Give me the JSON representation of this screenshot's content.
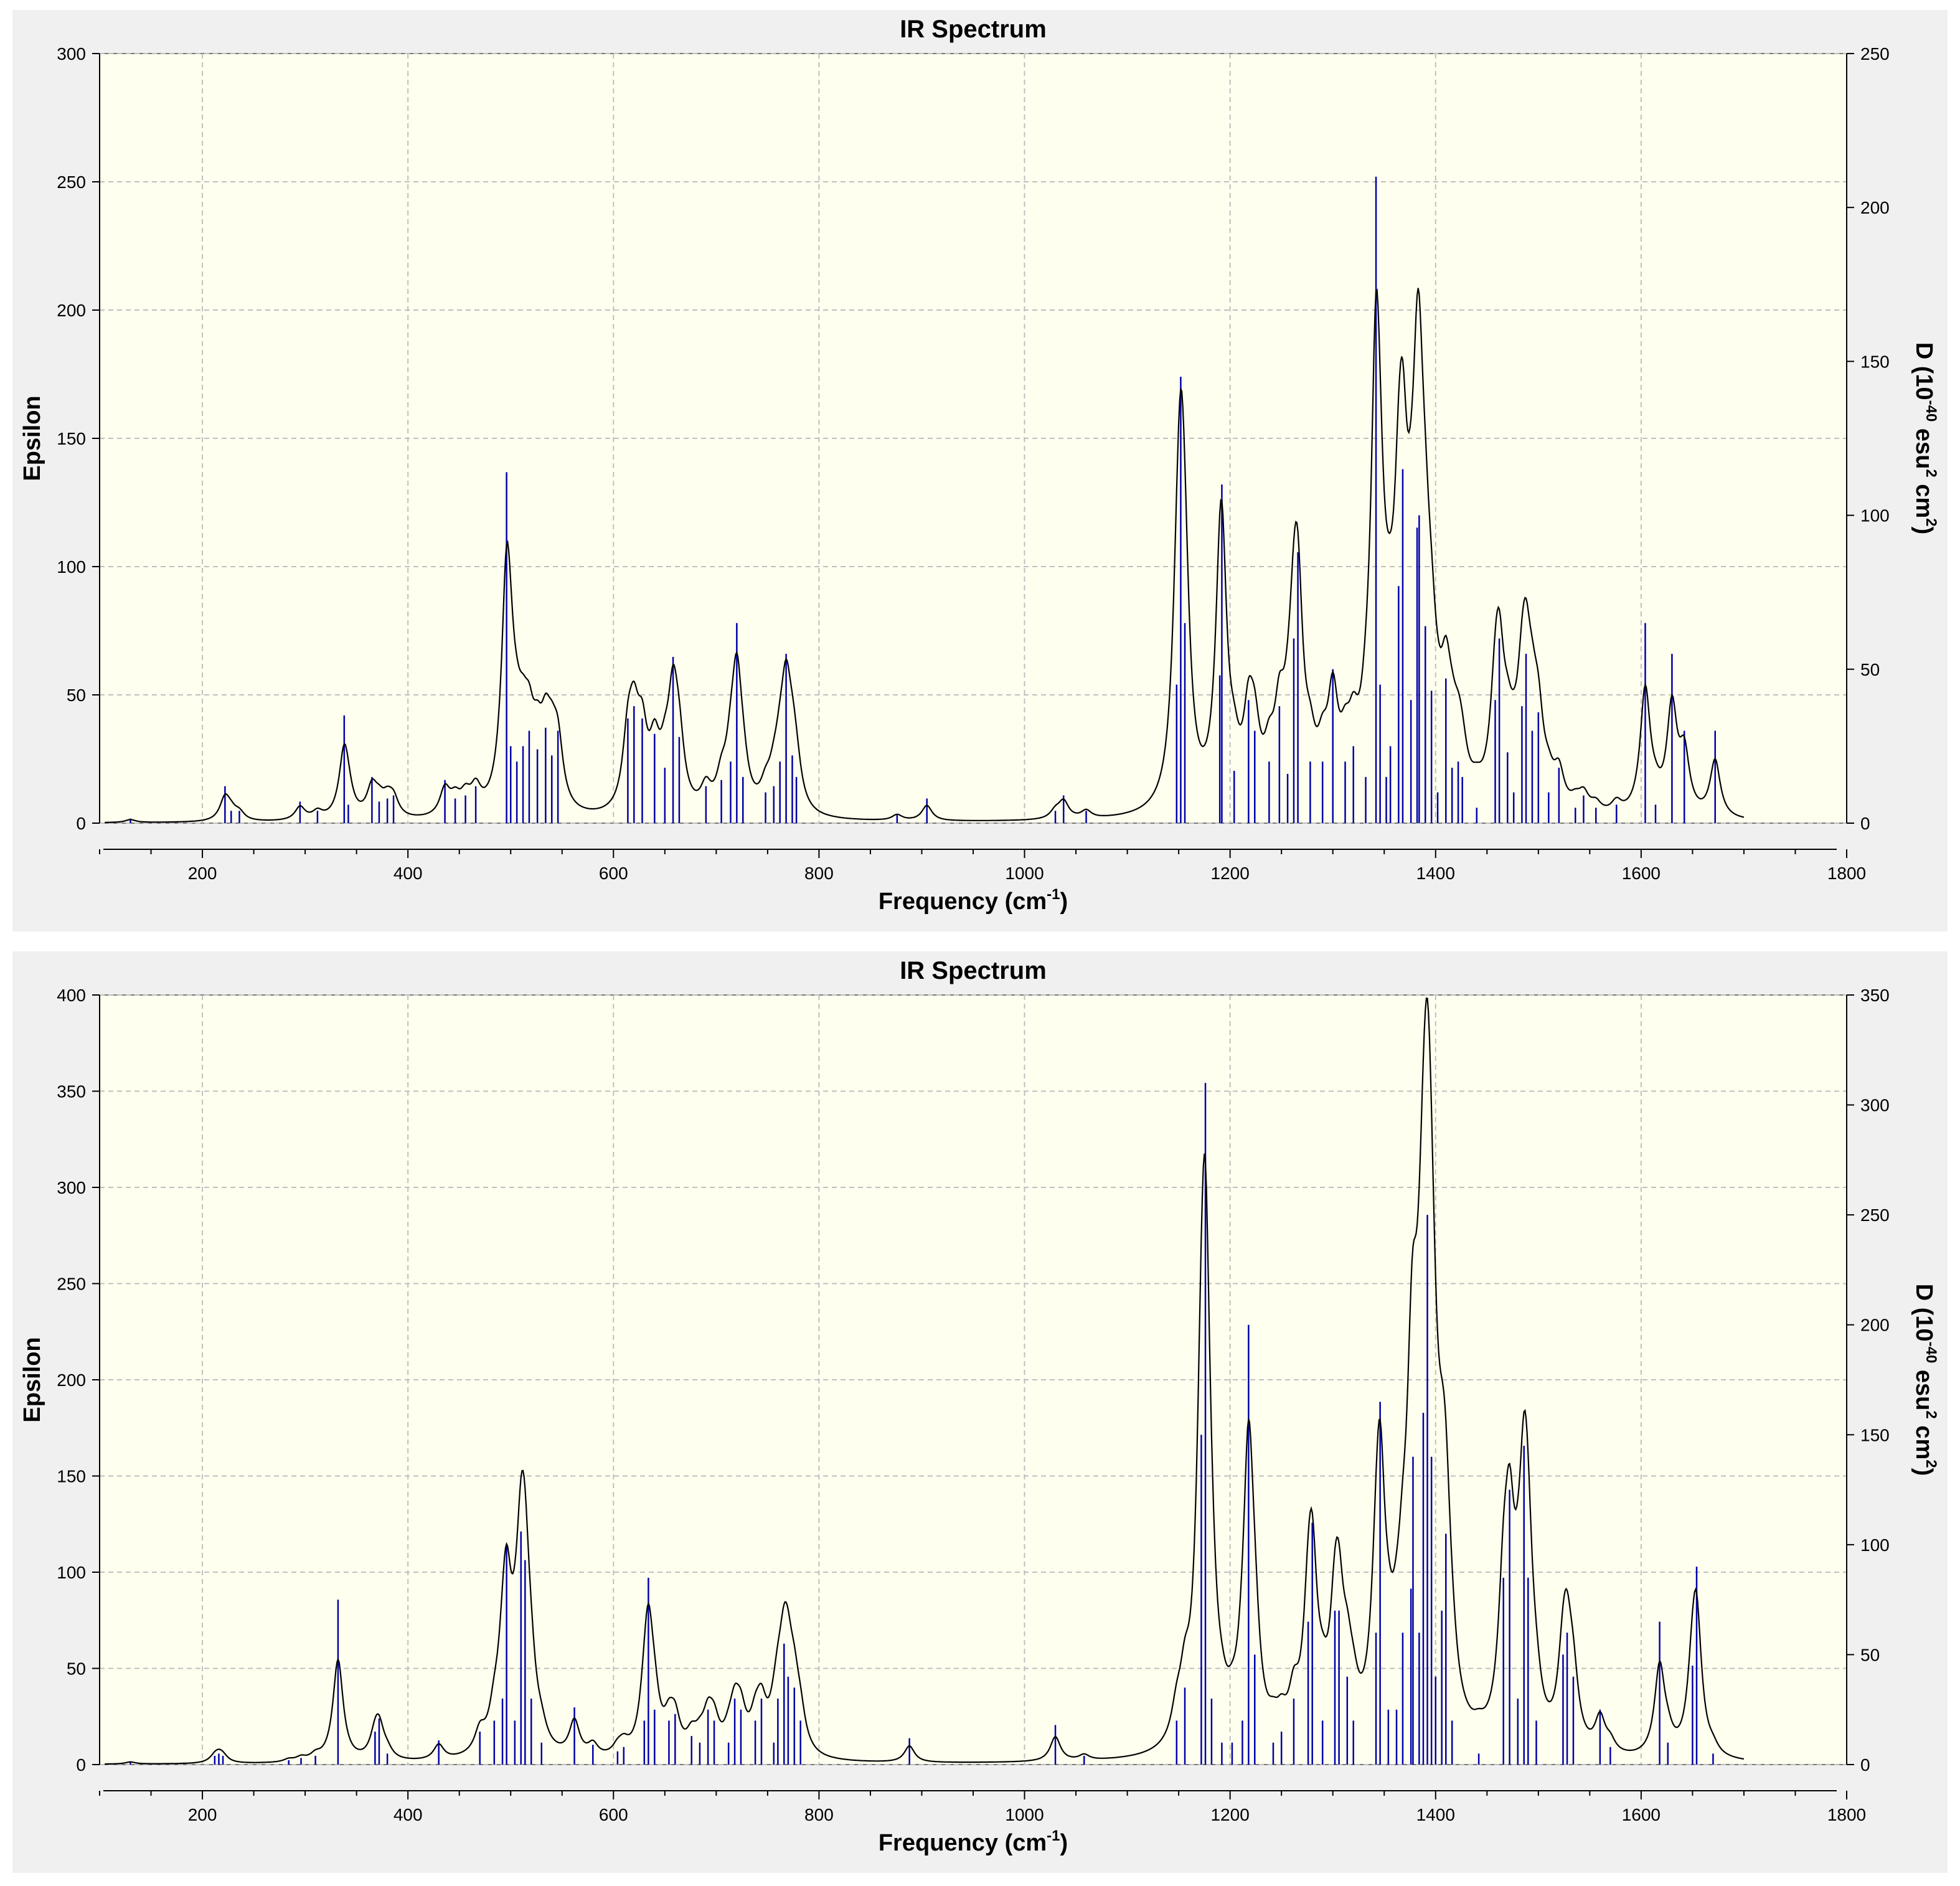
{
  "chart_data": [
    {
      "type": "line",
      "title": "IR Spectrum",
      "xlabel": "Frequency (cm",
      "xlabel_sup": "-1",
      "xlabel_end": ")",
      "ylabel": "Epsilon",
      "y2label_parts": [
        "D (10",
        "-40",
        " esu",
        "2",
        " cm",
        "2",
        ")"
      ],
      "xlim": [
        100,
        1800
      ],
      "ylim": [
        0,
        300
      ],
      "y2lim": [
        0,
        250
      ],
      "xticks": [
        200,
        400,
        600,
        800,
        1000,
        1200,
        1400,
        1600,
        1800
      ],
      "yticks": [
        0,
        50,
        100,
        150,
        200,
        250,
        300
      ],
      "y2ticks": [
        0,
        50,
        100,
        150,
        200,
        250
      ],
      "grid": true,
      "spectrum_color": "#000000",
      "stick_color": "#0000aa",
      "plot_background": "#ffffef",
      "line_width_cm1": 6,
      "peaks": [
        {
          "x": 130,
          "d": 1.5
        },
        {
          "x": 222,
          "d": 12
        },
        {
          "x": 228,
          "d": 4
        },
        {
          "x": 236,
          "d": 4
        },
        {
          "x": 295,
          "d": 7
        },
        {
          "x": 312,
          "d": 4
        },
        {
          "x": 338,
          "d": 35
        },
        {
          "x": 342,
          "d": 6
        },
        {
          "x": 365,
          "d": 15
        },
        {
          "x": 372,
          "d": 7
        },
        {
          "x": 380,
          "d": 8
        },
        {
          "x": 386,
          "d": 9
        },
        {
          "x": 436,
          "d": 14
        },
        {
          "x": 446,
          "d": 8
        },
        {
          "x": 456,
          "d": 9
        },
        {
          "x": 466,
          "d": 12
        },
        {
          "x": 496,
          "d": 114
        },
        {
          "x": 500,
          "d": 25
        },
        {
          "x": 506,
          "d": 20
        },
        {
          "x": 512,
          "d": 25
        },
        {
          "x": 518,
          "d": 30
        },
        {
          "x": 526,
          "d": 24
        },
        {
          "x": 534,
          "d": 31
        },
        {
          "x": 540,
          "d": 22
        },
        {
          "x": 546,
          "d": 30
        },
        {
          "x": 614,
          "d": 34
        },
        {
          "x": 620,
          "d": 38
        },
        {
          "x": 628,
          "d": 34
        },
        {
          "x": 640,
          "d": 29
        },
        {
          "x": 650,
          "d": 18
        },
        {
          "x": 658,
          "d": 54
        },
        {
          "x": 664,
          "d": 28
        },
        {
          "x": 690,
          "d": 12
        },
        {
          "x": 705,
          "d": 14
        },
        {
          "x": 714,
          "d": 20
        },
        {
          "x": 720,
          "d": 65
        },
        {
          "x": 726,
          "d": 15
        },
        {
          "x": 748,
          "d": 10
        },
        {
          "x": 756,
          "d": 12
        },
        {
          "x": 762,
          "d": 20
        },
        {
          "x": 768,
          "d": 55
        },
        {
          "x": 774,
          "d": 22
        },
        {
          "x": 778,
          "d": 15
        },
        {
          "x": 876,
          "d": 3
        },
        {
          "x": 905,
          "d": 8
        },
        {
          "x": 1030,
          "d": 4
        },
        {
          "x": 1038,
          "d": 9
        },
        {
          "x": 1060,
          "d": 4
        },
        {
          "x": 1148,
          "d": 45
        },
        {
          "x": 1152,
          "d": 145
        },
        {
          "x": 1156,
          "d": 65
        },
        {
          "x": 1190,
          "d": 48
        },
        {
          "x": 1192,
          "d": 110
        },
        {
          "x": 1204,
          "d": 17
        },
        {
          "x": 1218,
          "d": 40
        },
        {
          "x": 1224,
          "d": 30
        },
        {
          "x": 1238,
          "d": 20
        },
        {
          "x": 1248,
          "d": 38
        },
        {
          "x": 1256,
          "d": 16
        },
        {
          "x": 1262,
          "d": 60
        },
        {
          "x": 1266,
          "d": 88
        },
        {
          "x": 1278,
          "d": 20
        },
        {
          "x": 1290,
          "d": 20
        },
        {
          "x": 1300,
          "d": 50
        },
        {
          "x": 1312,
          "d": 20
        },
        {
          "x": 1320,
          "d": 25
        },
        {
          "x": 1332,
          "d": 15
        },
        {
          "x": 1342,
          "d": 210
        },
        {
          "x": 1346,
          "d": 45
        },
        {
          "x": 1352,
          "d": 15
        },
        {
          "x": 1356,
          "d": 25
        },
        {
          "x": 1364,
          "d": 77
        },
        {
          "x": 1368,
          "d": 115
        },
        {
          "x": 1376,
          "d": 40
        },
        {
          "x": 1382,
          "d": 96
        },
        {
          "x": 1384,
          "d": 100
        },
        {
          "x": 1390,
          "d": 64
        },
        {
          "x": 1396,
          "d": 43
        },
        {
          "x": 1402,
          "d": 10
        },
        {
          "x": 1410,
          "d": 47
        },
        {
          "x": 1416,
          "d": 18
        },
        {
          "x": 1422,
          "d": 20
        },
        {
          "x": 1426,
          "d": 15
        },
        {
          "x": 1440,
          "d": 5
        },
        {
          "x": 1458,
          "d": 40
        },
        {
          "x": 1462,
          "d": 60
        },
        {
          "x": 1470,
          "d": 23
        },
        {
          "x": 1476,
          "d": 10
        },
        {
          "x": 1484,
          "d": 38
        },
        {
          "x": 1488,
          "d": 55
        },
        {
          "x": 1494,
          "d": 30
        },
        {
          "x": 1500,
          "d": 36
        },
        {
          "x": 1510,
          "d": 10
        },
        {
          "x": 1520,
          "d": 18
        },
        {
          "x": 1536,
          "d": 5
        },
        {
          "x": 1544,
          "d": 9
        },
        {
          "x": 1556,
          "d": 5
        },
        {
          "x": 1576,
          "d": 6
        },
        {
          "x": 1604,
          "d": 65
        },
        {
          "x": 1614,
          "d": 6
        },
        {
          "x": 1630,
          "d": 55
        },
        {
          "x": 1642,
          "d": 30
        },
        {
          "x": 1672,
          "d": 30
        }
      ]
    },
    {
      "type": "line",
      "title": "IR Spectrum",
      "xlabel": "Frequency (cm",
      "xlabel_sup": "-1",
      "xlabel_end": ")",
      "ylabel": "Epsilon",
      "y2label_parts": [
        "D (10",
        "-40",
        " esu",
        "2",
        " cm",
        "2",
        ")"
      ],
      "xlim": [
        100,
        1800
      ],
      "ylim": [
        0,
        400
      ],
      "y2lim": [
        0,
        350
      ],
      "xticks": [
        200,
        400,
        600,
        800,
        1000,
        1200,
        1400,
        1600,
        1800
      ],
      "yticks": [
        0,
        50,
        100,
        150,
        200,
        250,
        300,
        350,
        400
      ],
      "y2ticks": [
        0,
        50,
        100,
        150,
        200,
        250,
        300,
        350
      ],
      "grid": true,
      "spectrum_color": "#000000",
      "stick_color": "#0000aa",
      "plot_background": "#ffffef",
      "line_width_cm1": 6,
      "peaks": [
        {
          "x": 130,
          "d": 1.5
        },
        {
          "x": 212,
          "d": 4
        },
        {
          "x": 216,
          "d": 5
        },
        {
          "x": 220,
          "d": 4
        },
        {
          "x": 284,
          "d": 2
        },
        {
          "x": 296,
          "d": 3
        },
        {
          "x": 310,
          "d": 4
        },
        {
          "x": 332,
          "d": 75
        },
        {
          "x": 368,
          "d": 15
        },
        {
          "x": 372,
          "d": 21
        },
        {
          "x": 380,
          "d": 5
        },
        {
          "x": 430,
          "d": 11
        },
        {
          "x": 470,
          "d": 15
        },
        {
          "x": 484,
          "d": 20
        },
        {
          "x": 492,
          "d": 30
        },
        {
          "x": 496,
          "d": 100
        },
        {
          "x": 504,
          "d": 20
        },
        {
          "x": 510,
          "d": 106
        },
        {
          "x": 514,
          "d": 93
        },
        {
          "x": 520,
          "d": 30
        },
        {
          "x": 530,
          "d": 10
        },
        {
          "x": 562,
          "d": 26
        },
        {
          "x": 580,
          "d": 9
        },
        {
          "x": 604,
          "d": 6
        },
        {
          "x": 610,
          "d": 8
        },
        {
          "x": 630,
          "d": 20
        },
        {
          "x": 634,
          "d": 85
        },
        {
          "x": 640,
          "d": 25
        },
        {
          "x": 654,
          "d": 20
        },
        {
          "x": 660,
          "d": 23
        },
        {
          "x": 676,
          "d": 13
        },
        {
          "x": 684,
          "d": 10
        },
        {
          "x": 692,
          "d": 25
        },
        {
          "x": 698,
          "d": 20
        },
        {
          "x": 712,
          "d": 10
        },
        {
          "x": 718,
          "d": 30
        },
        {
          "x": 724,
          "d": 25
        },
        {
          "x": 738,
          "d": 20
        },
        {
          "x": 744,
          "d": 30
        },
        {
          "x": 756,
          "d": 10
        },
        {
          "x": 760,
          "d": 30
        },
        {
          "x": 766,
          "d": 55
        },
        {
          "x": 770,
          "d": 40
        },
        {
          "x": 776,
          "d": 35
        },
        {
          "x": 782,
          "d": 20
        },
        {
          "x": 888,
          "d": 12
        },
        {
          "x": 1030,
          "d": 18
        },
        {
          "x": 1058,
          "d": 4
        },
        {
          "x": 1148,
          "d": 20
        },
        {
          "x": 1156,
          "d": 35
        },
        {
          "x": 1172,
          "d": 150
        },
        {
          "x": 1176,
          "d": 310
        },
        {
          "x": 1182,
          "d": 30
        },
        {
          "x": 1192,
          "d": 10
        },
        {
          "x": 1202,
          "d": 10
        },
        {
          "x": 1212,
          "d": 20
        },
        {
          "x": 1218,
          "d": 200
        },
        {
          "x": 1224,
          "d": 50
        },
        {
          "x": 1242,
          "d": 10
        },
        {
          "x": 1250,
          "d": 15
        },
        {
          "x": 1262,
          "d": 30
        },
        {
          "x": 1276,
          "d": 65
        },
        {
          "x": 1280,
          "d": 110
        },
        {
          "x": 1290,
          "d": 20
        },
        {
          "x": 1302,
          "d": 70
        },
        {
          "x": 1306,
          "d": 70
        },
        {
          "x": 1314,
          "d": 40
        },
        {
          "x": 1320,
          "d": 20
        },
        {
          "x": 1342,
          "d": 60
        },
        {
          "x": 1346,
          "d": 165
        },
        {
          "x": 1354,
          "d": 25
        },
        {
          "x": 1362,
          "d": 25
        },
        {
          "x": 1368,
          "d": 60
        },
        {
          "x": 1376,
          "d": 80
        },
        {
          "x": 1378,
          "d": 140
        },
        {
          "x": 1384,
          "d": 60
        },
        {
          "x": 1388,
          "d": 160
        },
        {
          "x": 1392,
          "d": 250
        },
        {
          "x": 1396,
          "d": 140
        },
        {
          "x": 1400,
          "d": 40
        },
        {
          "x": 1406,
          "d": 70
        },
        {
          "x": 1410,
          "d": 105
        },
        {
          "x": 1416,
          "d": 20
        },
        {
          "x": 1442,
          "d": 5
        },
        {
          "x": 1466,
          "d": 85
        },
        {
          "x": 1472,
          "d": 125
        },
        {
          "x": 1480,
          "d": 30
        },
        {
          "x": 1486,
          "d": 145
        },
        {
          "x": 1490,
          "d": 85
        },
        {
          "x": 1498,
          "d": 20
        },
        {
          "x": 1524,
          "d": 50
        },
        {
          "x": 1528,
          "d": 60
        },
        {
          "x": 1534,
          "d": 40
        },
        {
          "x": 1560,
          "d": 25
        },
        {
          "x": 1570,
          "d": 8
        },
        {
          "x": 1618,
          "d": 65
        },
        {
          "x": 1626,
          "d": 10
        },
        {
          "x": 1650,
          "d": 45
        },
        {
          "x": 1654,
          "d": 90
        },
        {
          "x": 1670,
          "d": 5
        }
      ]
    }
  ]
}
